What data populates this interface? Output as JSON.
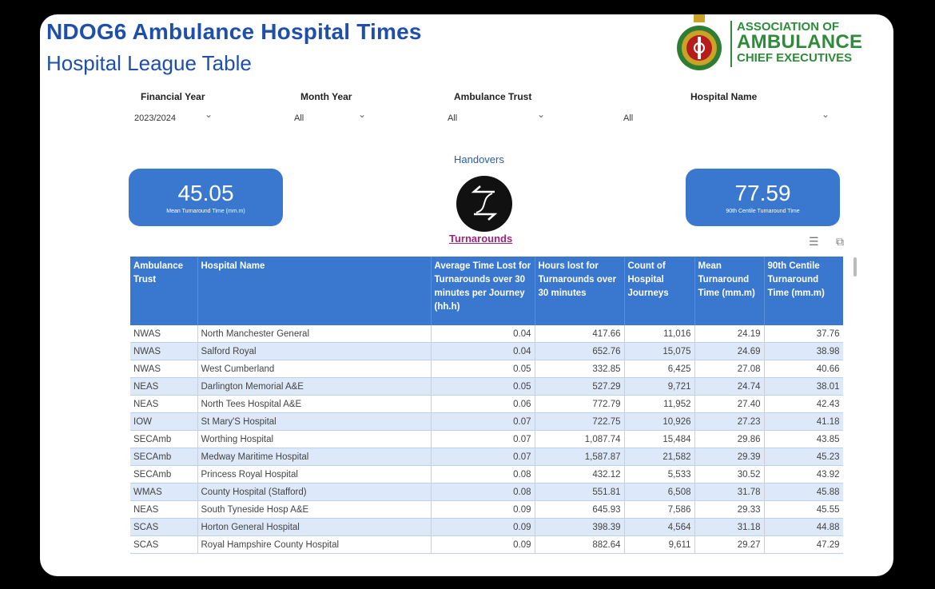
{
  "header": {
    "title": "NDOG6 Ambulance Hospital Times",
    "subtitle": "Hospital League Table"
  },
  "logo": {
    "line1": "ASSOCIATION OF",
    "line2": "AMBULANCE",
    "line3": "CHIEF EXECUTIVES"
  },
  "filters": {
    "financial_year": {
      "label": "Financial Year",
      "value": "2023/2024"
    },
    "month_year": {
      "label": "Month Year",
      "value": "All"
    },
    "ambulance_trust": {
      "label": "Ambulance Trust",
      "value": "All"
    },
    "hospital_name": {
      "label": "Hospital Name",
      "value": "All"
    }
  },
  "kpis": {
    "mean": {
      "value": "45.05",
      "caption": "Mean Turnaround Time (mm.m)"
    },
    "centile": {
      "value": "77.59",
      "caption": "90th Centile Turnaround Time"
    }
  },
  "toggle": {
    "handovers_label": "Handovers",
    "turnarounds_label": "Turnarounds"
  },
  "table": {
    "headers": [
      "Ambulance Trust",
      "Hospital Name",
      "Average Time Lost for Turnarounds over 30 minutes per Journey (hh.h)",
      "Hours lost for Turnarounds over 30 minutes",
      "Count of Hospital Journeys",
      "Mean Turnaround Time (mm.m)",
      "90th Centile Turnaround Time (mm.m)"
    ],
    "rows": [
      [
        "NWAS",
        "North Manchester General",
        "0.04",
        "417.66",
        "11,016",
        "24.19",
        "37.76"
      ],
      [
        "NWAS",
        "Salford Royal",
        "0.04",
        "652.76",
        "15,075",
        "24.69",
        "38.98"
      ],
      [
        "NWAS",
        "West Cumberland",
        "0.05",
        "332.85",
        "6,425",
        "27.08",
        "40.66"
      ],
      [
        "NEAS",
        "Darlington Memorial A&E",
        "0.05",
        "527.29",
        "9,721",
        "24.74",
        "38.01"
      ],
      [
        "NEAS",
        "North Tees Hospital A&E",
        "0.06",
        "772.79",
        "11,952",
        "27.40",
        "42.43"
      ],
      [
        "IOW",
        "St Mary'S Hospital",
        "0.07",
        "722.75",
        "10,926",
        "27.23",
        "41.18"
      ],
      [
        "SECAmb",
        "Worthing Hospital",
        "0.07",
        "1,087.74",
        "15,484",
        "29.86",
        "43.85"
      ],
      [
        "SECAmb",
        "Medway Maritime Hospital",
        "0.07",
        "1,587.87",
        "21,582",
        "29.39",
        "45.23"
      ],
      [
        "SECAmb",
        "Princess Royal Hospital",
        "0.08",
        "432.12",
        "5,533",
        "30.52",
        "43.92"
      ],
      [
        "WMAS",
        "County Hospital (Stafford)",
        "0.08",
        "551.81",
        "6,508",
        "31.78",
        "45.88"
      ],
      [
        "NEAS",
        "South Tyneside Hosp A&E",
        "0.09",
        "645.93",
        "7,586",
        "29.33",
        "45.55"
      ],
      [
        "SCAS",
        "Horton General Hospital",
        "0.09",
        "398.39",
        "4,564",
        "31.18",
        "44.88"
      ],
      [
        "SCAS",
        "Royal Hampshire County Hospital",
        "0.09",
        "882.64",
        "9,611",
        "29.27",
        "47.29"
      ]
    ]
  }
}
